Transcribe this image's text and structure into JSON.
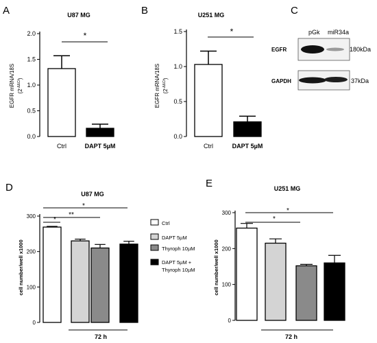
{
  "panels": {
    "A": {
      "letter": "A",
      "title": "U87 MG",
      "ylabel_main": "EGFR mRNA/18S",
      "ylabel_sub": "(2",
      "ylabel_sup": "-ΔΔCt",
      "ylabel_close": ")",
      "sig": "*"
    },
    "B": {
      "letter": "B",
      "title": "U251 MG",
      "ylabel_main": "EGFR mRNA/18S",
      "ylabel_sub": "(2",
      "ylabel_sup": "-ΔΔCt",
      "ylabel_close": ")",
      "sig": "*"
    },
    "C": {
      "letter": "C",
      "lane_labels": [
        "pGk",
        "miR34a"
      ],
      "row_labels": [
        "EGFR",
        "GAPDH"
      ],
      "size_labels": [
        "180kDa",
        "37kDa"
      ]
    },
    "D": {
      "letter": "D",
      "title": "U87 MG",
      "ylabel": "cell number/well x1000",
      "xlabel": "72 h",
      "sig": [
        "*",
        "**",
        "*"
      ]
    },
    "E": {
      "letter": "E",
      "title": "U251 MG",
      "ylabel": "cell number/well x1000",
      "xlabel": "72 h",
      "sig": [
        "*",
        "*"
      ]
    }
  },
  "legend": {
    "items": [
      "Ctrl",
      "DAPT 5µM",
      "Thyroph 10µM",
      "DAPT 5µM +",
      "Thyroph 10µM"
    ],
    "colors": [
      "#ffffff",
      "#d4d4d4",
      "#8a8a8a",
      "#000000"
    ]
  },
  "chart_data": [
    {
      "type": "bar",
      "panel": "A",
      "title": "U87 MG",
      "categories": [
        "Ctrl",
        "DAPT 5µM"
      ],
      "values": [
        1.32,
        0.16
      ],
      "errors": [
        0.25,
        0.08
      ],
      "colors": [
        "#ffffff",
        "#000000"
      ],
      "ylabel": "EGFR mRNA/18S (2-ΔΔCt)",
      "ylim": [
        0,
        2.0
      ],
      "yticks": [
        "0.0",
        "0.5",
        "1.0",
        "1.5",
        "2.0"
      ]
    },
    {
      "type": "bar",
      "panel": "B",
      "title": "U251 MG",
      "categories": [
        "Ctrl",
        "DAPT 5µM"
      ],
      "values": [
        1.03,
        0.21
      ],
      "errors": [
        0.19,
        0.08
      ],
      "colors": [
        "#ffffff",
        "#000000"
      ],
      "ylabel": "EGFR mRNA/18S (2-ΔΔCt)",
      "ylim": [
        0,
        1.5
      ],
      "yticks": [
        "0.0",
        "0.5",
        "1.0",
        "1.5"
      ]
    },
    {
      "type": "bar",
      "panel": "D",
      "title": "U87 MG",
      "categories": [
        "Ctrl",
        "DAPT 5µM",
        "Thyroph 10µM",
        "DAPT 5µM + Thyroph 10µM"
      ],
      "values": [
        269,
        230,
        210,
        221
      ],
      "errors": [
        2,
        5,
        10,
        8
      ],
      "colors": [
        "#ffffff",
        "#d4d4d4",
        "#8a8a8a",
        "#000000"
      ],
      "ylabel": "cell number/well x1000",
      "xlabel": "72 h",
      "ylim": [
        0,
        300
      ],
      "yticks": [
        "0",
        "100",
        "200",
        "300"
      ]
    },
    {
      "type": "bar",
      "panel": "E",
      "title": "U251 MG",
      "categories": [
        "Ctrl",
        "DAPT 5µM",
        "Thyroph 10µM",
        "DAPT 5µM + Thyroph 10µM"
      ],
      "values": [
        257,
        215,
        152,
        160
      ],
      "errors": [
        13,
        12,
        4,
        21
      ],
      "colors": [
        "#ffffff",
        "#d4d4d4",
        "#8a8a8a",
        "#000000"
      ],
      "ylabel": "cell number/well x1000",
      "xlabel": "72 h",
      "ylim": [
        0,
        300
      ],
      "yticks": [
        "0",
        "100",
        "200",
        "300"
      ]
    }
  ]
}
